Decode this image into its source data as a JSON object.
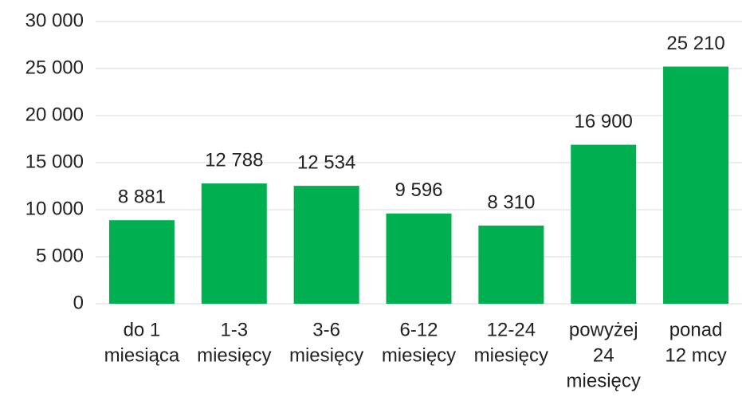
{
  "chart_data": {
    "type": "bar",
    "categories": [
      [
        "do 1",
        "miesiąca"
      ],
      [
        "1-3",
        "miesięcy"
      ],
      [
        "3-6",
        "miesięcy"
      ],
      [
        "6-12",
        "miesięcy"
      ],
      [
        "12-24",
        "miesięcy"
      ],
      [
        "powyżej",
        "24",
        "miesięcy"
      ],
      [
        "ponad",
        "12 mcy"
      ]
    ],
    "values": [
      8881,
      12788,
      12534,
      9596,
      8310,
      16900,
      25210
    ],
    "value_labels": [
      "8 881",
      "12 788",
      "12 534",
      "9 596",
      "8 310",
      "16 900",
      "25 210"
    ],
    "color": "#00b050",
    "ylim": [
      0,
      30000
    ],
    "yticks": [
      {
        "value": 0,
        "label": "0"
      },
      {
        "value": 5000,
        "label": "5 000"
      },
      {
        "value": 10000,
        "label": "10 000"
      },
      {
        "value": 15000,
        "label": "15 000"
      },
      {
        "value": 20000,
        "label": "20 000"
      },
      {
        "value": 25000,
        "label": "25 000"
      },
      {
        "value": 30000,
        "label": "30 000"
      }
    ],
    "grid": true
  }
}
